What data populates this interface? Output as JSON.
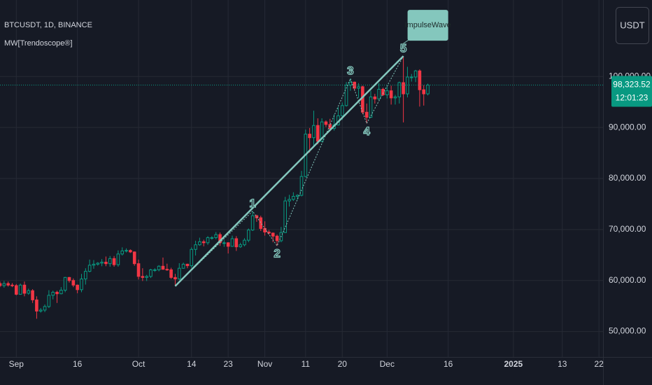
{
  "chart_data": {
    "type": "candlestick",
    "title": "BTCUSDT, 1D, BINANCE",
    "subtitle": "MW[Trendoscope®]",
    "currency": "USDT",
    "up_color": "#089981",
    "down_color": "#f23645",
    "grid": true,
    "x": [
      "2024-08-28",
      "2024-08-29",
      "2024-08-30",
      "2024-08-31",
      "2024-09-01",
      "2024-09-02",
      "2024-09-03",
      "2024-09-04",
      "2024-09-05",
      "2024-09-06",
      "2024-09-07",
      "2024-09-08",
      "2024-09-09",
      "2024-09-10",
      "2024-09-11",
      "2024-09-12",
      "2024-09-13",
      "2024-09-14",
      "2024-09-15",
      "2024-09-16",
      "2024-09-17",
      "2024-09-18",
      "2024-09-19",
      "2024-09-20",
      "2024-09-21",
      "2024-09-22",
      "2024-09-23",
      "2024-09-24",
      "2024-09-25",
      "2024-09-26",
      "2024-09-27",
      "2024-09-28",
      "2024-09-29",
      "2024-09-30",
      "2024-10-01",
      "2024-10-02",
      "2024-10-03",
      "2024-10-04",
      "2024-10-05",
      "2024-10-06",
      "2024-10-07",
      "2024-10-08",
      "2024-10-09",
      "2024-10-10",
      "2024-10-11",
      "2024-10-12",
      "2024-10-13",
      "2024-10-14",
      "2024-10-15",
      "2024-10-16",
      "2024-10-17",
      "2024-10-18",
      "2024-10-19",
      "2024-10-20",
      "2024-10-21",
      "2024-10-22",
      "2024-10-23",
      "2024-10-24",
      "2024-10-25",
      "2024-10-26",
      "2024-10-27",
      "2024-10-28",
      "2024-10-29",
      "2024-10-30",
      "2024-10-31",
      "2024-11-01",
      "2024-11-02",
      "2024-11-03",
      "2024-11-04",
      "2024-11-05",
      "2024-11-06",
      "2024-11-07",
      "2024-11-08",
      "2024-11-09",
      "2024-11-10",
      "2024-11-11",
      "2024-11-12",
      "2024-11-13",
      "2024-11-14",
      "2024-11-15",
      "2024-11-16",
      "2024-11-17",
      "2024-11-18",
      "2024-11-19",
      "2024-11-20",
      "2024-11-21",
      "2024-11-22",
      "2024-11-23",
      "2024-11-24",
      "2024-11-25",
      "2024-11-26",
      "2024-11-27",
      "2024-11-28",
      "2024-11-29",
      "2024-11-30",
      "2024-12-01",
      "2024-12-02",
      "2024-12-03",
      "2024-12-04",
      "2024-12-05",
      "2024-12-06",
      "2024-12-07",
      "2024-12-08",
      "2024-12-09",
      "2024-12-10",
      "2024-12-11"
    ],
    "open": [
      59400,
      59000,
      59400,
      59100,
      59000,
      57300,
      59100,
      57500,
      58000,
      56200,
      54000,
      54200,
      54900,
      57100,
      57700,
      57400,
      58100,
      60600,
      60000,
      59100,
      58200,
      60300,
      61800,
      63000,
      63200,
      63400,
      63600,
      63300,
      64300,
      63100,
      65200,
      65800,
      65900,
      65600,
      63300,
      60800,
      60600,
      60800,
      62100,
      62100,
      62800,
      62200,
      62100,
      60600,
      60300,
      62400,
      63200,
      62900,
      66100,
      67000,
      67600,
      67400,
      68400,
      68400,
      69000,
      67400,
      67400,
      66700,
      68200,
      66600,
      67000,
      67900,
      69900,
      72700,
      72300,
      70200,
      69500,
      69300,
      68700,
      67800,
      69400,
      75600,
      75900,
      76500,
      76700,
      80400,
      88700,
      88000,
      90400,
      87300,
      91100,
      90600,
      89800,
      90500,
      92300,
      94300,
      98300,
      98900,
      97700,
      98000,
      93000,
      92000,
      96000,
      95600,
      97500,
      96400,
      97200,
      95800,
      96000,
      98800,
      96600,
      99900,
      99900,
      101100,
      97400,
      96600
    ],
    "high": [
      59800,
      59900,
      59800,
      59500,
      59300,
      59400,
      59800,
      58400,
      58300,
      56900,
      54600,
      55300,
      58100,
      58000,
      58000,
      58700,
      60700,
      60700,
      60400,
      59200,
      61300,
      62400,
      64100,
      64000,
      63600,
      64200,
      64700,
      64800,
      64800,
      65900,
      66500,
      66300,
      66100,
      65700,
      64100,
      62400,
      61100,
      62300,
      62400,
      63000,
      64500,
      63300,
      62500,
      61300,
      63400,
      63500,
      63300,
      66500,
      67800,
      68400,
      68000,
      68700,
      68700,
      69500,
      69400,
      67900,
      67500,
      68800,
      68700,
      67400,
      68300,
      70200,
      73600,
      72900,
      72700,
      71600,
      69900,
      69400,
      69000,
      70500,
      76400,
      76800,
      77300,
      76900,
      81500,
      89600,
      89900,
      93300,
      91800,
      91800,
      91400,
      91700,
      92600,
      94000,
      94900,
      98900,
      99600,
      99000,
      98700,
      98200,
      94700,
      97200,
      96600,
      98700,
      97800,
      98000,
      98200,
      96400,
      99000,
      104000,
      101900,
      100500,
      101300,
      101400,
      98300,
      98600
    ],
    "low": [
      58700,
      58600,
      58800,
      58700,
      57100,
      57200,
      56900,
      57200,
      55600,
      52500,
      53700,
      53800,
      54600,
      56300,
      55600,
      57300,
      57700,
      59600,
      58700,
      57500,
      57700,
      59200,
      61600,
      62300,
      62900,
      62800,
      62800,
      62700,
      62700,
      62700,
      64900,
      65500,
      65400,
      62900,
      60200,
      59900,
      59900,
      60500,
      61700,
      61800,
      62100,
      61900,
      60300,
      58900,
      60100,
      62300,
      62400,
      62500,
      64900,
      66800,
      66700,
      67000,
      68000,
      68100,
      66800,
      66600,
      65300,
      66600,
      65800,
      66400,
      66700,
      67500,
      69700,
      71500,
      69700,
      68800,
      69000,
      67500,
      66800,
      67500,
      69300,
      74500,
      75600,
      75800,
      76500,
      80200,
      85100,
      86300,
      86700,
      87100,
      90100,
      89300,
      89400,
      90400,
      91500,
      94100,
      97200,
      97200,
      95800,
      92600,
      90800,
      91900,
      94700,
      95400,
      96200,
      95700,
      94500,
      94500,
      94700,
      91000,
      95900,
      99000,
      98900,
      94100,
      94300,
      96300
    ],
    "close": [
      59000,
      59400,
      59100,
      59000,
      57300,
      59100,
      57500,
      58000,
      56200,
      54000,
      54200,
      54900,
      57100,
      57700,
      57400,
      58100,
      60600,
      60000,
      59100,
      58200,
      60300,
      61800,
      63000,
      63200,
      63400,
      63600,
      63300,
      64300,
      63100,
      65200,
      65800,
      65900,
      65600,
      63300,
      60800,
      60600,
      60800,
      62100,
      62100,
      62800,
      62200,
      62100,
      60600,
      60300,
      62400,
      63200,
      62900,
      66100,
      67000,
      67600,
      67400,
      68400,
      68400,
      69000,
      67400,
      67400,
      66700,
      68200,
      66600,
      67000,
      67900,
      69900,
      72700,
      72300,
      70200,
      69500,
      69300,
      68700,
      67800,
      69400,
      75600,
      75900,
      76500,
      76700,
      80400,
      88700,
      88000,
      90400,
      87300,
      91100,
      90600,
      89800,
      90500,
      92300,
      94300,
      98300,
      98900,
      97700,
      98000,
      93000,
      92000,
      96000,
      95600,
      97500,
      96400,
      97200,
      95800,
      96000,
      98800,
      96600,
      99900,
      99900,
      101100,
      97400,
      96600,
      98323.52
    ],
    "xlim": [
      "2024-08-28",
      "2025-01-23"
    ],
    "xticks": [
      {
        "value": "2024-09-01",
        "label": "Sep"
      },
      {
        "value": "2024-09-16",
        "label": "16"
      },
      {
        "value": "2024-10-01",
        "label": "Oct"
      },
      {
        "value": "2024-10-14",
        "label": "14"
      },
      {
        "value": "2024-10-23",
        "label": "23"
      },
      {
        "value": "2024-11-01",
        "label": "Nov"
      },
      {
        "value": "2024-11-11",
        "label": "11"
      },
      {
        "value": "2024-11-20",
        "label": "20"
      },
      {
        "value": "2024-12-01",
        "label": "Dec"
      },
      {
        "value": "2024-12-16",
        "label": "16"
      },
      {
        "value": "2025-01-01",
        "label": "2025"
      },
      {
        "value": "2025-01-13",
        "label": "13"
      },
      {
        "value": "2025-01-22",
        "label": "22"
      }
    ],
    "ylim": [
      45000,
      115000
    ],
    "yticks": [
      {
        "value": 50000,
        "label": "50,000.00"
      },
      {
        "value": 60000,
        "label": "60,000.00"
      },
      {
        "value": 70000,
        "label": "70,000.00"
      },
      {
        "value": 80000,
        "label": "80,000.00"
      },
      {
        "value": 90000,
        "label": "90,000.00"
      },
      {
        "value": 100000,
        "label": "100,000.00"
      }
    ],
    "last_price": {
      "value": 98323.52,
      "label": "98,323.52"
    },
    "countdown": "12:01:23",
    "wave": {
      "name": "ImpulseWave",
      "color": "#84c7bd",
      "points": [
        {
          "x": "2024-10-10",
          "y": 58900,
          "label": null
        },
        {
          "x": "2024-10-29",
          "y": 73600,
          "label": "1"
        },
        {
          "x": "2024-11-04",
          "y": 66800,
          "label": "2"
        },
        {
          "x": "2024-11-22",
          "y": 99600,
          "label": "3"
        },
        {
          "x": "2024-11-26",
          "y": 90800,
          "label": "4"
        },
        {
          "x": "2024-12-05",
          "y": 104000,
          "label": "5"
        }
      ]
    }
  }
}
